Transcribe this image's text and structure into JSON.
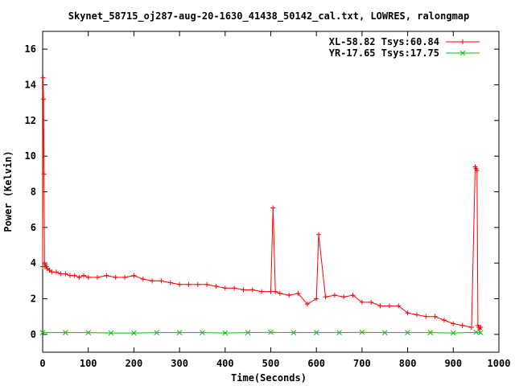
{
  "chart_data": {
    "type": "line",
    "title": "Skynet_58715_oj287-aug-20-1630_41438_50142_cal.txt, LOWRES, ralongmap",
    "xlabel": "Time(Seconds)",
    "ylabel": "Power (Kelvin)",
    "xlim": [
      0,
      1000
    ],
    "ylim": [
      -1,
      17
    ],
    "xticks": [
      0,
      100,
      200,
      300,
      400,
      500,
      600,
      700,
      800,
      900,
      1000
    ],
    "yticks": [
      0,
      2,
      4,
      6,
      8,
      10,
      12,
      14,
      16
    ],
    "grid": false,
    "legend_position": "top-right",
    "series": [
      {
        "name": "XL-58.82 Tsys:60.84",
        "color": "#ff0000",
        "marker": "plus",
        "x": [
          0,
          1,
          2,
          3,
          4,
          5,
          6,
          8,
          10,
          15,
          20,
          30,
          40,
          50,
          60,
          70,
          80,
          90,
          100,
          120,
          140,
          160,
          180,
          200,
          220,
          240,
          260,
          280,
          300,
          320,
          340,
          360,
          380,
          400,
          420,
          440,
          460,
          480,
          500,
          505,
          510,
          520,
          540,
          560,
          580,
          600,
          605,
          620,
          640,
          660,
          680,
          700,
          720,
          740,
          760,
          780,
          800,
          820,
          840,
          860,
          880,
          900,
          920,
          940,
          948,
          950,
          952,
          954,
          956,
          958,
          960
        ],
        "y": [
          3.8,
          14.4,
          13.2,
          9.0,
          4.0,
          3.8,
          3.9,
          3.8,
          3.7,
          3.6,
          3.5,
          3.5,
          3.4,
          3.4,
          3.3,
          3.3,
          3.2,
          3.3,
          3.2,
          3.2,
          3.3,
          3.2,
          3.2,
          3.3,
          3.1,
          3.0,
          3.0,
          2.9,
          2.8,
          2.8,
          2.8,
          2.8,
          2.7,
          2.6,
          2.6,
          2.5,
          2.5,
          2.4,
          2.4,
          7.1,
          2.4,
          2.3,
          2.2,
          2.3,
          1.7,
          2.0,
          5.6,
          2.1,
          2.2,
          2.1,
          2.2,
          1.8,
          1.8,
          1.6,
          1.6,
          1.6,
          1.2,
          1.1,
          1.0,
          1.0,
          0.8,
          0.6,
          0.5,
          0.4,
          9.4,
          9.3,
          9.2,
          0.5,
          0.4,
          0.3,
          0.4
        ]
      },
      {
        "name": "YR-17.65 Tsys:17.75",
        "color": "#00c000",
        "marker": "cross",
        "x": [
          0,
          50,
          100,
          150,
          200,
          250,
          300,
          350,
          400,
          450,
          500,
          550,
          600,
          650,
          700,
          750,
          800,
          850,
          900,
          950,
          960
        ],
        "y": [
          0.1,
          0.1,
          0.1,
          0.08,
          0.08,
          0.1,
          0.1,
          0.1,
          0.08,
          0.1,
          0.12,
          0.1,
          0.1,
          0.1,
          0.12,
          0.1,
          0.1,
          0.1,
          0.08,
          0.12,
          0.1
        ]
      }
    ]
  }
}
